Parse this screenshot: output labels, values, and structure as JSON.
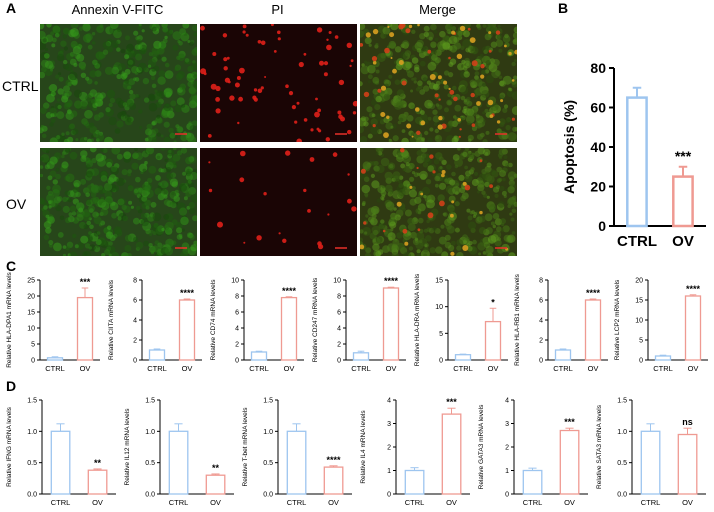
{
  "panel_labels": {
    "a": "A",
    "b": "B",
    "c": "C",
    "d": "D"
  },
  "micrographs": {
    "columns": [
      "Annexin V-FITC",
      "PI",
      "Merge"
    ],
    "rows": [
      "CTRL",
      "OV"
    ]
  },
  "colors": {
    "ctrl": "#9ec5ef",
    "ov": "#ef9a92",
    "fitc_green": "#3c6a1c",
    "pi_red": "#e0201a",
    "scale_bar": "#e8302a"
  },
  "chart_data": [
    {
      "id": "B",
      "type": "bar",
      "categories": [
        "CTRL",
        "OV"
      ],
      "values": [
        65,
        25
      ],
      "errors": [
        5,
        5
      ],
      "ylabel": "Apoptosis (%)",
      "ylim": [
        0,
        80
      ],
      "yticks": [
        0,
        20,
        40,
        60,
        80
      ],
      "annotation": "***"
    },
    {
      "id": "C1",
      "type": "bar",
      "categories": [
        "CTRL",
        "OV"
      ],
      "values": [
        0.7,
        19.5
      ],
      "errors": [
        0.3,
        3
      ],
      "ylabel": "Relative HLA-DPA1 mRNA levels",
      "ylim": [
        0,
        25
      ],
      "yticks": [
        0,
        5,
        10,
        15,
        20,
        25
      ],
      "annotation": "***"
    },
    {
      "id": "C2",
      "type": "bar",
      "categories": [
        "CTRL",
        "OV"
      ],
      "values": [
        1,
        6
      ],
      "errors": [
        0.1,
        0.1
      ],
      "ylabel": "Relative CIITA mRNA levels",
      "ylim": [
        0,
        8
      ],
      "yticks": [
        0,
        2,
        4,
        6,
        8
      ],
      "annotation": "****"
    },
    {
      "id": "C3",
      "type": "bar",
      "categories": [
        "CTRL",
        "OV"
      ],
      "values": [
        1,
        7.8
      ],
      "errors": [
        0.1,
        0.1
      ],
      "ylabel": "Relative CD74 mRNA levels",
      "ylim": [
        0,
        10
      ],
      "yticks": [
        0,
        2,
        4,
        6,
        8,
        10
      ],
      "annotation": "****"
    },
    {
      "id": "C4",
      "type": "bar",
      "categories": [
        "CTRL",
        "OV"
      ],
      "values": [
        0.9,
        9
      ],
      "errors": [
        0.2,
        0.1
      ],
      "ylabel": "Relative CD247 mRNA levels",
      "ylim": [
        0,
        10
      ],
      "yticks": [
        0,
        2,
        4,
        6,
        8,
        10
      ],
      "annotation": "****"
    },
    {
      "id": "C5",
      "type": "bar",
      "categories": [
        "CTRL",
        "OV"
      ],
      "values": [
        1,
        7.2
      ],
      "errors": [
        0.1,
        2.5
      ],
      "ylabel": "Relative HLA-DRA mRNA levels",
      "ylim": [
        0,
        15
      ],
      "yticks": [
        0,
        5,
        10,
        15
      ],
      "annotation": "*"
    },
    {
      "id": "C6",
      "type": "bar",
      "categories": [
        "CTRL",
        "OV"
      ],
      "values": [
        1,
        6
      ],
      "errors": [
        0.1,
        0.1
      ],
      "ylabel": "Relative HLA-RB1 mRNA levels",
      "ylim": [
        0,
        8
      ],
      "yticks": [
        0,
        2,
        4,
        6,
        8
      ],
      "annotation": "****"
    },
    {
      "id": "C7",
      "type": "bar",
      "categories": [
        "CTRL",
        "OV"
      ],
      "values": [
        1,
        16
      ],
      "errors": [
        0.2,
        0.3
      ],
      "ylabel": "Relative LCP2 mRNA levels",
      "ylim": [
        0,
        20
      ],
      "yticks": [
        0,
        5,
        10,
        15,
        20
      ],
      "annotation": "****"
    },
    {
      "id": "D1",
      "type": "bar",
      "categories": [
        "CTRL",
        "OV"
      ],
      "values": [
        1,
        0.38
      ],
      "errors": [
        0.12,
        0.02
      ],
      "ylabel": "Relative IFNG mRNA levels",
      "ylim": [
        0,
        1.5
      ],
      "yticks": [
        0,
        0.5,
        1.0,
        1.5
      ],
      "annotation": "**"
    },
    {
      "id": "D2",
      "type": "bar",
      "categories": [
        "CTRL",
        "OV"
      ],
      "values": [
        1,
        0.3
      ],
      "errors": [
        0.12,
        0.02
      ],
      "ylabel": "Relative IL12 mRNA levels",
      "ylim": [
        0,
        1.5
      ],
      "yticks": [
        0,
        0.5,
        1.0,
        1.5
      ],
      "annotation": "**"
    },
    {
      "id": "D3",
      "type": "bar",
      "categories": [
        "CTRL",
        "OV"
      ],
      "values": [
        1,
        0.43
      ],
      "errors": [
        0.12,
        0.02
      ],
      "ylabel": "Relative T-bet mRNA levels",
      "ylim": [
        0,
        1.5
      ],
      "yticks": [
        0,
        0.5,
        1.0,
        1.5
      ],
      "annotation": "****"
    },
    {
      "id": "D4",
      "type": "bar",
      "categories": [
        "CTRL",
        "OV"
      ],
      "values": [
        1,
        3.4
      ],
      "errors": [
        0.12,
        0.25
      ],
      "ylabel": "Relative IL4 mRNA levels",
      "ylim": [
        0,
        4
      ],
      "yticks": [
        0,
        1,
        2,
        3,
        4
      ],
      "annotation": "***"
    },
    {
      "id": "D5",
      "type": "bar",
      "categories": [
        "CTRL",
        "OV"
      ],
      "values": [
        1,
        2.7
      ],
      "errors": [
        0.1,
        0.1
      ],
      "ylabel": "Relative GATA3 mRNA levels",
      "ylim": [
        0,
        4
      ],
      "yticks": [
        0,
        1,
        2,
        3,
        4
      ],
      "annotation": "***"
    },
    {
      "id": "D6",
      "type": "bar",
      "categories": [
        "CTRL",
        "OV"
      ],
      "values": [
        1,
        0.95
      ],
      "errors": [
        0.12,
        0.1
      ],
      "ylabel": "Relative SATA3 mRNA levels",
      "ylim": [
        0,
        1.5
      ],
      "yticks": [
        0,
        0.5,
        1.0,
        1.5
      ],
      "annotation": "ns"
    }
  ]
}
